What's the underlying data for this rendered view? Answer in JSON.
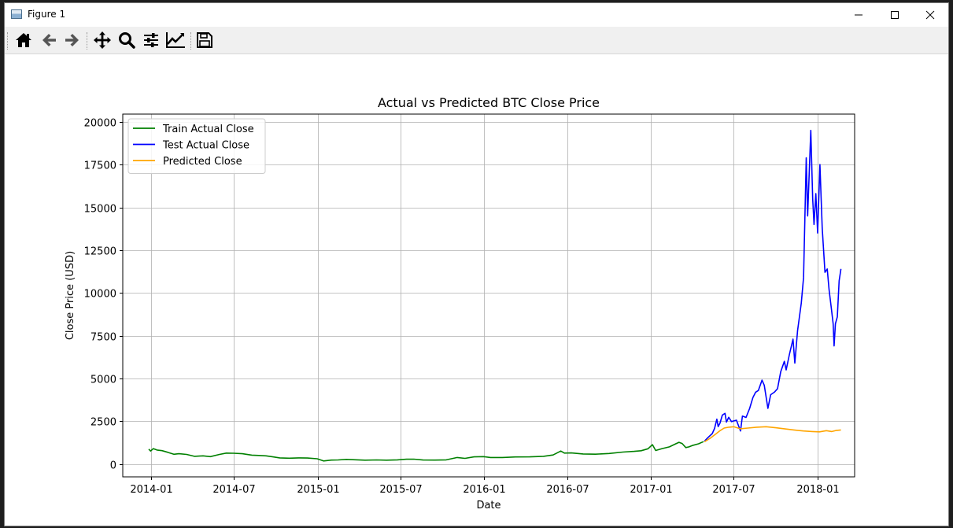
{
  "window": {
    "title": "Figure 1"
  },
  "toolbar": {
    "buttons": [
      {
        "icon": "home-icon",
        "name": "home-button"
      },
      {
        "icon": "back-arrow-icon",
        "name": "back-button"
      },
      {
        "icon": "forward-arrow-icon",
        "name": "forward-button"
      },
      {
        "icon": "move-icon",
        "name": "pan-button"
      },
      {
        "icon": "magnifier-icon",
        "name": "zoom-button"
      },
      {
        "icon": "sliders-icon",
        "name": "subplots-button"
      },
      {
        "icon": "line-chart-icon",
        "name": "edit-axes-button"
      },
      {
        "icon": "floppy-disk-icon",
        "name": "save-button"
      }
    ]
  },
  "chart_data": {
    "type": "line",
    "title": "Actual vs Predicted BTC Close Price",
    "xlabel": "Date",
    "ylabel": "Close Price (USD)",
    "xlim": [
      "2013-10-31",
      "2018-03-23"
    ],
    "ylim": [
      -750,
      20450
    ],
    "xticks": [
      "2014-01",
      "2014-07",
      "2015-01",
      "2015-07",
      "2016-01",
      "2016-07",
      "2017-01",
      "2017-07",
      "2018-01"
    ],
    "yticks": [
      0,
      2500,
      5000,
      7500,
      10000,
      12500,
      15000,
      17500,
      20000
    ],
    "grid": true,
    "legend_position": "top-left",
    "series": [
      {
        "name": "Train Actual Close",
        "color": "#008000",
        "points": [
          [
            "2013-12-27",
            870
          ],
          [
            "2013-12-31",
            760
          ],
          [
            "2014-01-06",
            900
          ],
          [
            "2014-01-14",
            820
          ],
          [
            "2014-01-25",
            780
          ],
          [
            "2014-02-06",
            690
          ],
          [
            "2014-02-20",
            570
          ],
          [
            "2014-03-03",
            600
          ],
          [
            "2014-03-20",
            560
          ],
          [
            "2014-04-06",
            450
          ],
          [
            "2014-04-25",
            480
          ],
          [
            "2014-05-11",
            430
          ],
          [
            "2014-05-31",
            560
          ],
          [
            "2014-06-15",
            640
          ],
          [
            "2014-07-01",
            630
          ],
          [
            "2014-07-20",
            600
          ],
          [
            "2014-08-10",
            520
          ],
          [
            "2014-08-25",
            500
          ],
          [
            "2014-09-10",
            480
          ],
          [
            "2014-09-25",
            420
          ],
          [
            "2014-10-10",
            360
          ],
          [
            "2014-10-31",
            340
          ],
          [
            "2014-11-20",
            360
          ],
          [
            "2014-12-10",
            350
          ],
          [
            "2014-12-31",
            310
          ],
          [
            "2015-01-14",
            180
          ],
          [
            "2015-01-31",
            230
          ],
          [
            "2015-02-15",
            240
          ],
          [
            "2015-03-05",
            270
          ],
          [
            "2015-03-25",
            250
          ],
          [
            "2015-04-15",
            225
          ],
          [
            "2015-05-10",
            240
          ],
          [
            "2015-06-01",
            225
          ],
          [
            "2015-06-25",
            245
          ],
          [
            "2015-07-15",
            280
          ],
          [
            "2015-07-31",
            285
          ],
          [
            "2015-08-20",
            235
          ],
          [
            "2015-09-15",
            230
          ],
          [
            "2015-10-10",
            245
          ],
          [
            "2015-11-03",
            380
          ],
          [
            "2015-11-20",
            330
          ],
          [
            "2015-12-10",
            420
          ],
          [
            "2015-12-31",
            430
          ],
          [
            "2016-01-15",
            380
          ],
          [
            "2016-02-10",
            380
          ],
          [
            "2016-03-10",
            415
          ],
          [
            "2016-04-10",
            420
          ],
          [
            "2016-05-10",
            450
          ],
          [
            "2016-05-31",
            530
          ],
          [
            "2016-06-17",
            760
          ],
          [
            "2016-06-25",
            640
          ],
          [
            "2016-07-10",
            650
          ],
          [
            "2016-08-05",
            590
          ],
          [
            "2016-09-01",
            575
          ],
          [
            "2016-10-01",
            615
          ],
          [
            "2016-10-31",
            700
          ],
          [
            "2016-11-25",
            740
          ],
          [
            "2016-12-10",
            775
          ],
          [
            "2016-12-25",
            890
          ],
          [
            "2017-01-04",
            1130
          ],
          [
            "2017-01-11",
            790
          ],
          [
            "2017-01-25",
            900
          ],
          [
            "2017-02-10",
            1000
          ],
          [
            "2017-02-24",
            1180
          ],
          [
            "2017-03-03",
            1270
          ],
          [
            "2017-03-10",
            1200
          ],
          [
            "2017-03-18",
            960
          ],
          [
            "2017-03-25",
            1000
          ],
          [
            "2017-04-01",
            1080
          ],
          [
            "2017-04-15",
            1180
          ],
          [
            "2017-04-26",
            1310
          ]
        ]
      },
      {
        "name": "Test Actual Close",
        "color": "#0000ff",
        "points": [
          [
            "2017-04-28",
            1340
          ],
          [
            "2017-05-06",
            1560
          ],
          [
            "2017-05-15",
            1780
          ],
          [
            "2017-05-20",
            2080
          ],
          [
            "2017-05-25",
            2620
          ],
          [
            "2017-05-28",
            2190
          ],
          [
            "2017-06-01",
            2400
          ],
          [
            "2017-06-06",
            2860
          ],
          [
            "2017-06-12",
            2960
          ],
          [
            "2017-06-15",
            2450
          ],
          [
            "2017-06-20",
            2730
          ],
          [
            "2017-06-26",
            2480
          ],
          [
            "2017-07-01",
            2520
          ],
          [
            "2017-07-07",
            2560
          ],
          [
            "2017-07-16",
            1930
          ],
          [
            "2017-07-20",
            2800
          ],
          [
            "2017-07-28",
            2720
          ],
          [
            "2017-08-05",
            3250
          ],
          [
            "2017-08-12",
            3880
          ],
          [
            "2017-08-18",
            4200
          ],
          [
            "2017-08-24",
            4300
          ],
          [
            "2017-09-01",
            4900
          ],
          [
            "2017-09-06",
            4600
          ],
          [
            "2017-09-14",
            3250
          ],
          [
            "2017-09-20",
            4050
          ],
          [
            "2017-09-28",
            4200
          ],
          [
            "2017-10-05",
            4400
          ],
          [
            "2017-10-12",
            5400
          ],
          [
            "2017-10-20",
            6000
          ],
          [
            "2017-10-24",
            5500
          ],
          [
            "2017-10-31",
            6400
          ],
          [
            "2017-11-08",
            7300
          ],
          [
            "2017-11-12",
            5900
          ],
          [
            "2017-11-18",
            7800
          ],
          [
            "2017-11-26",
            9400
          ],
          [
            "2017-12-01",
            10900
          ],
          [
            "2017-12-07",
            17900
          ],
          [
            "2017-12-10",
            14500
          ],
          [
            "2017-12-17",
            19500
          ],
          [
            "2017-12-21",
            15500
          ],
          [
            "2017-12-24",
            14000
          ],
          [
            "2017-12-28",
            15800
          ],
          [
            "2018-01-01",
            13500
          ],
          [
            "2018-01-06",
            17500
          ],
          [
            "2018-01-11",
            13800
          ],
          [
            "2018-01-17",
            11200
          ],
          [
            "2018-01-22",
            11400
          ],
          [
            "2018-01-26",
            10200
          ],
          [
            "2018-01-31",
            9100
          ],
          [
            "2018-02-04",
            8200
          ],
          [
            "2018-02-06",
            6900
          ],
          [
            "2018-02-09",
            8200
          ],
          [
            "2018-02-13",
            8600
          ],
          [
            "2018-02-17",
            10700
          ],
          [
            "2018-02-21",
            11400
          ]
        ]
      },
      {
        "name": "Predicted Close",
        "color": "#ffa500",
        "points": [
          [
            "2017-04-28",
            1300
          ],
          [
            "2017-05-10",
            1500
          ],
          [
            "2017-05-20",
            1700
          ],
          [
            "2017-06-01",
            1950
          ],
          [
            "2017-06-10",
            2100
          ],
          [
            "2017-06-20",
            2150
          ],
          [
            "2017-07-01",
            2180
          ],
          [
            "2017-07-15",
            2060
          ],
          [
            "2017-08-01",
            2100
          ],
          [
            "2017-08-20",
            2150
          ],
          [
            "2017-09-10",
            2180
          ],
          [
            "2017-10-01",
            2120
          ],
          [
            "2017-10-20",
            2060
          ],
          [
            "2017-11-10",
            1990
          ],
          [
            "2017-12-01",
            1930
          ],
          [
            "2017-12-20",
            1900
          ],
          [
            "2018-01-05",
            1880
          ],
          [
            "2018-01-20",
            1950
          ],
          [
            "2018-02-01",
            1900
          ],
          [
            "2018-02-10",
            1960
          ],
          [
            "2018-02-21",
            1990
          ]
        ]
      }
    ]
  }
}
